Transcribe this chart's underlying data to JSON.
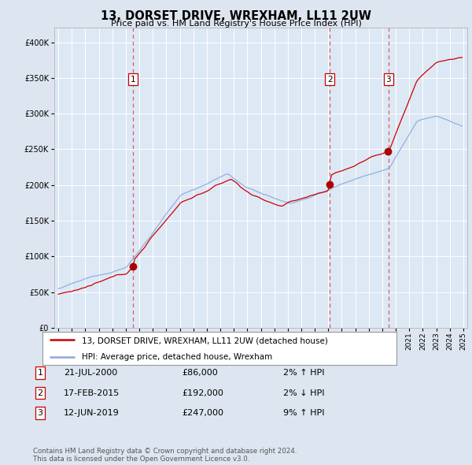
{
  "title": "13, DORSET DRIVE, WREXHAM, LL11 2UW",
  "subtitle": "Price paid vs. HM Land Registry's House Price Index (HPI)",
  "legend_line1": "13, DORSET DRIVE, WREXHAM, LL11 2UW (detached house)",
  "legend_line2": "HPI: Average price, detached house, Wrexham",
  "transactions": [
    {
      "label": "1",
      "date": "21-JUL-2000",
      "price": 86000,
      "hpi_diff": "2% ↑ HPI",
      "x": 2000.54
    },
    {
      "label": "2",
      "date": "17-FEB-2015",
      "price": 192000,
      "hpi_diff": "2% ↓ HPI",
      "x": 2015.12
    },
    {
      "label": "3",
      "date": "12-JUN-2019",
      "price": 247000,
      "hpi_diff": "9% ↑ HPI",
      "x": 2019.45
    }
  ],
  "footer": "Contains HM Land Registry data © Crown copyright and database right 2024.\nThis data is licensed under the Open Government Licence v3.0.",
  "background_color": "#dde5f0",
  "plot_bg_color": "#dde8f5",
  "line_color_property": "#cc0000",
  "line_color_hpi": "#88aadd",
  "grid_color": "#ffffff",
  "dashed_line_color": "#dd4444",
  "marker_color": "#aa0000",
  "ylim": [
    0,
    420000
  ],
  "yticks": [
    0,
    50000,
    100000,
    150000,
    200000,
    250000,
    300000,
    350000,
    400000
  ],
  "xlim_start": 1994.7,
  "xlim_end": 2025.3
}
